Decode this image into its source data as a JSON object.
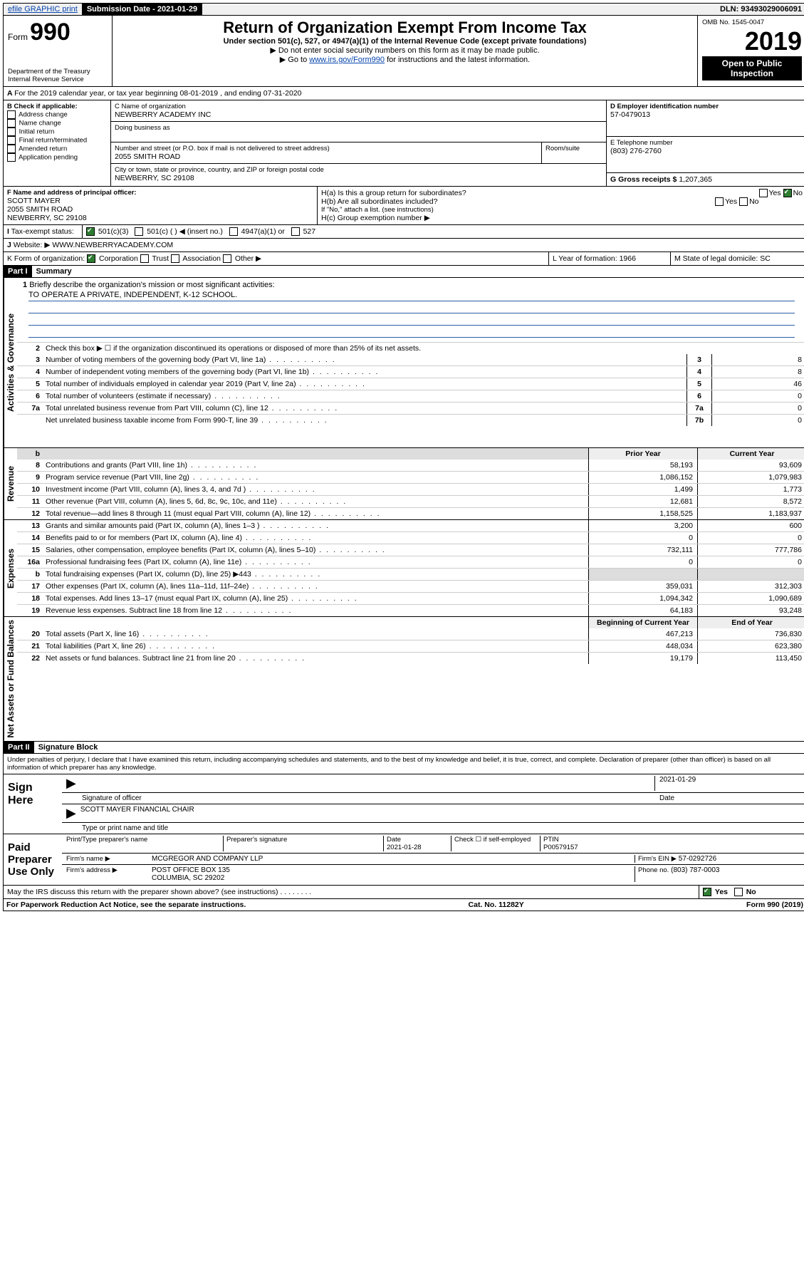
{
  "top": {
    "efile": "efile GRAPHIC print",
    "submission_label": "Submission Date - 2021-01-29",
    "dln": "DLN: 93493029006091"
  },
  "header": {
    "form_prefix": "Form",
    "form_number": "990",
    "dept1": "Department of the Treasury",
    "dept2": "Internal Revenue Service",
    "title": "Return of Organization Exempt From Income Tax",
    "subtitle": "Under section 501(c), 527, or 4947(a)(1) of the Internal Revenue Code (except private foundations)",
    "instr1": "▶ Do not enter social security numbers on this form as it may be made public.",
    "instr2_pre": "▶ Go to ",
    "instr2_link": "www.irs.gov/Form990",
    "instr2_post": " for instructions and the latest information.",
    "omb": "OMB No. 1545-0047",
    "year": "2019",
    "open": "Open to Public Inspection"
  },
  "periodA": "For the 2019 calendar year, or tax year beginning 08-01-2019   , and ending 07-31-2020",
  "boxB": {
    "label": "B Check if applicable:",
    "items": [
      "Address change",
      "Name change",
      "Initial return",
      "Final return/terminated",
      "Amended return",
      "Application pending"
    ]
  },
  "boxC": {
    "name_label": "C Name of organization",
    "name": "NEWBERRY ACADEMY INC",
    "dba_label": "Doing business as",
    "addr_label": "Number and street (or P.O. box if mail is not delivered to street address)",
    "room_label": "Room/suite",
    "addr": "2055 SMITH ROAD",
    "city_label": "City or town, state or province, country, and ZIP or foreign postal code",
    "city": "NEWBERRY, SC  29108"
  },
  "boxD": {
    "label": "D Employer identification number",
    "value": "57-0479013"
  },
  "boxE": {
    "label": "E Telephone number",
    "value": "(803) 276-2760"
  },
  "boxG": {
    "label": "G Gross receipts $",
    "value": "1,207,365"
  },
  "boxF": {
    "label": "F Name and address of principal officer:",
    "l1": "SCOTT MAYER",
    "l2": "2055 SMITH ROAD",
    "l3": "NEWBERRY, SC  29108"
  },
  "boxH": {
    "ha": "H(a) Is this a group return for subordinates?",
    "hb": "H(b) Are all subordinates included?",
    "hb_note": "If \"No,\" attach a list. (see instructions)",
    "hc": "H(c) Group exemption number ▶",
    "yes": "Yes",
    "no": "No"
  },
  "boxI": {
    "label": "Tax-exempt status:",
    "o1": "501(c)(3)",
    "o2": "501(c) (  ) ◀ (insert no.)",
    "o3": "4947(a)(1) or",
    "o4": "527"
  },
  "boxJ": {
    "label": "Website: ▶",
    "value": "WWW.NEWBERRYACADEMY.COM"
  },
  "boxK": {
    "label": "K Form of organization:",
    "o1": "Corporation",
    "o2": "Trust",
    "o3": "Association",
    "o4": "Other ▶"
  },
  "boxL": {
    "label": "L Year of formation:",
    "value": "1966"
  },
  "boxM": {
    "label": "M State of legal domicile:",
    "value": "SC"
  },
  "part1": {
    "tag": "Part I",
    "title": "Summary"
  },
  "summary": {
    "q1_label": "Briefly describe the organization's mission or most significant activities:",
    "q1_value": "TO OPERATE A PRIVATE, INDEPENDENT, K-12 SCHOOL.",
    "q2": "Check this box ▶ ☐  if the organization discontinued its operations or disposed of more than 25% of its net assets.",
    "lines_single": [
      {
        "n": "3",
        "d": "Number of voting members of the governing body (Part VI, line 1a)",
        "bn": "3",
        "v": "8"
      },
      {
        "n": "4",
        "d": "Number of independent voting members of the governing body (Part VI, line 1b)",
        "bn": "4",
        "v": "8"
      },
      {
        "n": "5",
        "d": "Total number of individuals employed in calendar year 2019 (Part V, line 2a)",
        "bn": "5",
        "v": "46"
      },
      {
        "n": "6",
        "d": "Total number of volunteers (estimate if necessary)",
        "bn": "6",
        "v": "0"
      },
      {
        "n": "7a",
        "d": "Total unrelated business revenue from Part VIII, column (C), line 12",
        "bn": "7a",
        "v": "0"
      },
      {
        "n": "",
        "d": "Net unrelated business taxable income from Form 990-T, line 39",
        "bn": "7b",
        "v": "0"
      }
    ],
    "col_prior": "Prior Year",
    "col_current": "Current Year",
    "revenue": [
      {
        "n": "8",
        "d": "Contributions and grants (Part VIII, line 1h)",
        "p": "58,193",
        "c": "93,609"
      },
      {
        "n": "9",
        "d": "Program service revenue (Part VIII, line 2g)",
        "p": "1,086,152",
        "c": "1,079,983"
      },
      {
        "n": "10",
        "d": "Investment income (Part VIII, column (A), lines 3, 4, and 7d )",
        "p": "1,499",
        "c": "1,773"
      },
      {
        "n": "11",
        "d": "Other revenue (Part VIII, column (A), lines 5, 6d, 8c, 9c, 10c, and 11e)",
        "p": "12,681",
        "c": "8,572"
      },
      {
        "n": "12",
        "d": "Total revenue—add lines 8 through 11 (must equal Part VIII, column (A), line 12)",
        "p": "1,158,525",
        "c": "1,183,937"
      }
    ],
    "expenses": [
      {
        "n": "13",
        "d": "Grants and similar amounts paid (Part IX, column (A), lines 1–3 )",
        "p": "3,200",
        "c": "600"
      },
      {
        "n": "14",
        "d": "Benefits paid to or for members (Part IX, column (A), line 4)",
        "p": "0",
        "c": "0"
      },
      {
        "n": "15",
        "d": "Salaries, other compensation, employee benefits (Part IX, column (A), lines 5–10)",
        "p": "732,111",
        "c": "777,786"
      },
      {
        "n": "16a",
        "d": "Professional fundraising fees (Part IX, column (A), line 11e)",
        "p": "0",
        "c": "0"
      },
      {
        "n": "b",
        "d": "Total fundraising expenses (Part IX, column (D), line 25) ▶443",
        "p": "",
        "c": "",
        "grey": true
      },
      {
        "n": "17",
        "d": "Other expenses (Part IX, column (A), lines 11a–11d, 11f–24e)",
        "p": "359,031",
        "c": "312,303"
      },
      {
        "n": "18",
        "d": "Total expenses. Add lines 13–17 (must equal Part IX, column (A), line 25)",
        "p": "1,094,342",
        "c": "1,090,689"
      },
      {
        "n": "19",
        "d": "Revenue less expenses. Subtract line 18 from line 12",
        "p": "64,183",
        "c": "93,248"
      }
    ],
    "col_begin": "Beginning of Current Year",
    "col_end": "End of Year",
    "netassets": [
      {
        "n": "20",
        "d": "Total assets (Part X, line 16)",
        "p": "467,213",
        "c": "736,830"
      },
      {
        "n": "21",
        "d": "Total liabilities (Part X, line 26)",
        "p": "448,034",
        "c": "623,380"
      },
      {
        "n": "22",
        "d": "Net assets or fund balances. Subtract line 21 from line 20",
        "p": "19,179",
        "c": "113,450"
      }
    ],
    "sec_gov": "Activities & Governance",
    "sec_rev": "Revenue",
    "sec_exp": "Expenses",
    "sec_net": "Net Assets or Fund Balances"
  },
  "part2": {
    "tag": "Part II",
    "title": "Signature Block"
  },
  "perjury": "Under penalties of perjury, I declare that I have examined this return, including accompanying schedules and statements, and to the best of my knowledge and belief, it is true, correct, and complete. Declaration of preparer (other than officer) is based on all information of which preparer has any knowledge.",
  "sign": {
    "label": "Sign Here",
    "date": "2021-01-29",
    "sig_label": "Signature of officer",
    "date_label": "Date",
    "name": "SCOTT MAYER  FINANCIAL CHAIR",
    "name_label": "Type or print name and title"
  },
  "paid": {
    "label": "Paid Preparer Use Only",
    "h_name": "Print/Type preparer's name",
    "h_sig": "Preparer's signature",
    "h_date": "Date",
    "date": "2021-01-28",
    "h_check": "Check ☐ if self-employed",
    "h_ptin": "PTIN",
    "ptin": "P00579157",
    "firm_label": "Firm's name    ▶",
    "firm": "MCGREGOR AND COMPANY LLP",
    "ein_label": "Firm's EIN ▶",
    "ein": "57-0292726",
    "addr_label": "Firm's address ▶",
    "addr1": "POST OFFICE BOX 135",
    "addr2": "COLUMBIA, SC  29202",
    "phone_label": "Phone no.",
    "phone": "(803) 787-0003"
  },
  "discuss": "May the IRS discuss this return with the preparer shown above? (see instructions)",
  "footer": {
    "left": "For Paperwork Reduction Act Notice, see the separate instructions.",
    "mid": "Cat. No. 11282Y",
    "right": "Form 990 (2019)"
  }
}
